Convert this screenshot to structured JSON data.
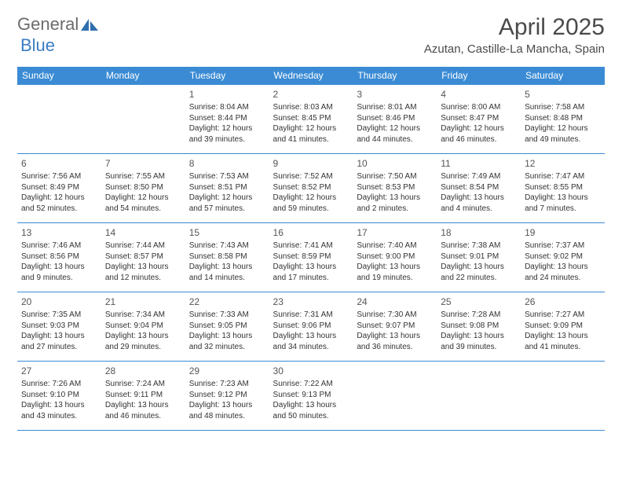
{
  "logo": {
    "general": "General",
    "blue": "Blue"
  },
  "header": {
    "month_title": "April 2025",
    "location": "Azutan, Castille-La Mancha, Spain"
  },
  "colors": {
    "header_bg": "#3b8bd4",
    "header_text": "#ffffff",
    "cell_border": "#3b8bd4",
    "logo_gray": "#6b6b6b",
    "logo_blue": "#3b7dc4",
    "text": "#333333",
    "title_text": "#4a4a4a",
    "page_bg": "#ffffff"
  },
  "typography": {
    "month_title_fontsize": 30,
    "location_fontsize": 15,
    "dayheader_fontsize": 12,
    "daynum_fontsize": 12,
    "cell_fontsize": 10
  },
  "calendar": {
    "day_headers": [
      "Sunday",
      "Monday",
      "Tuesday",
      "Wednesday",
      "Thursday",
      "Friday",
      "Saturday"
    ],
    "weeks": [
      [
        null,
        null,
        {
          "day": "1",
          "sunrise": "8:04 AM",
          "sunset": "8:44 PM",
          "daylight_l1": "Daylight: 12 hours",
          "daylight_l2": "and 39 minutes."
        },
        {
          "day": "2",
          "sunrise": "8:03 AM",
          "sunset": "8:45 PM",
          "daylight_l1": "Daylight: 12 hours",
          "daylight_l2": "and 41 minutes."
        },
        {
          "day": "3",
          "sunrise": "8:01 AM",
          "sunset": "8:46 PM",
          "daylight_l1": "Daylight: 12 hours",
          "daylight_l2": "and 44 minutes."
        },
        {
          "day": "4",
          "sunrise": "8:00 AM",
          "sunset": "8:47 PM",
          "daylight_l1": "Daylight: 12 hours",
          "daylight_l2": "and 46 minutes."
        },
        {
          "day": "5",
          "sunrise": "7:58 AM",
          "sunset": "8:48 PM",
          "daylight_l1": "Daylight: 12 hours",
          "daylight_l2": "and 49 minutes."
        }
      ],
      [
        {
          "day": "6",
          "sunrise": "7:56 AM",
          "sunset": "8:49 PM",
          "daylight_l1": "Daylight: 12 hours",
          "daylight_l2": "and 52 minutes."
        },
        {
          "day": "7",
          "sunrise": "7:55 AM",
          "sunset": "8:50 PM",
          "daylight_l1": "Daylight: 12 hours",
          "daylight_l2": "and 54 minutes."
        },
        {
          "day": "8",
          "sunrise": "7:53 AM",
          "sunset": "8:51 PM",
          "daylight_l1": "Daylight: 12 hours",
          "daylight_l2": "and 57 minutes."
        },
        {
          "day": "9",
          "sunrise": "7:52 AM",
          "sunset": "8:52 PM",
          "daylight_l1": "Daylight: 12 hours",
          "daylight_l2": "and 59 minutes."
        },
        {
          "day": "10",
          "sunrise": "7:50 AM",
          "sunset": "8:53 PM",
          "daylight_l1": "Daylight: 13 hours",
          "daylight_l2": "and 2 minutes."
        },
        {
          "day": "11",
          "sunrise": "7:49 AM",
          "sunset": "8:54 PM",
          "daylight_l1": "Daylight: 13 hours",
          "daylight_l2": "and 4 minutes."
        },
        {
          "day": "12",
          "sunrise": "7:47 AM",
          "sunset": "8:55 PM",
          "daylight_l1": "Daylight: 13 hours",
          "daylight_l2": "and 7 minutes."
        }
      ],
      [
        {
          "day": "13",
          "sunrise": "7:46 AM",
          "sunset": "8:56 PM",
          "daylight_l1": "Daylight: 13 hours",
          "daylight_l2": "and 9 minutes."
        },
        {
          "day": "14",
          "sunrise": "7:44 AM",
          "sunset": "8:57 PM",
          "daylight_l1": "Daylight: 13 hours",
          "daylight_l2": "and 12 minutes."
        },
        {
          "day": "15",
          "sunrise": "7:43 AM",
          "sunset": "8:58 PM",
          "daylight_l1": "Daylight: 13 hours",
          "daylight_l2": "and 14 minutes."
        },
        {
          "day": "16",
          "sunrise": "7:41 AM",
          "sunset": "8:59 PM",
          "daylight_l1": "Daylight: 13 hours",
          "daylight_l2": "and 17 minutes."
        },
        {
          "day": "17",
          "sunrise": "7:40 AM",
          "sunset": "9:00 PM",
          "daylight_l1": "Daylight: 13 hours",
          "daylight_l2": "and 19 minutes."
        },
        {
          "day": "18",
          "sunrise": "7:38 AM",
          "sunset": "9:01 PM",
          "daylight_l1": "Daylight: 13 hours",
          "daylight_l2": "and 22 minutes."
        },
        {
          "day": "19",
          "sunrise": "7:37 AM",
          "sunset": "9:02 PM",
          "daylight_l1": "Daylight: 13 hours",
          "daylight_l2": "and 24 minutes."
        }
      ],
      [
        {
          "day": "20",
          "sunrise": "7:35 AM",
          "sunset": "9:03 PM",
          "daylight_l1": "Daylight: 13 hours",
          "daylight_l2": "and 27 minutes."
        },
        {
          "day": "21",
          "sunrise": "7:34 AM",
          "sunset": "9:04 PM",
          "daylight_l1": "Daylight: 13 hours",
          "daylight_l2": "and 29 minutes."
        },
        {
          "day": "22",
          "sunrise": "7:33 AM",
          "sunset": "9:05 PM",
          "daylight_l1": "Daylight: 13 hours",
          "daylight_l2": "and 32 minutes."
        },
        {
          "day": "23",
          "sunrise": "7:31 AM",
          "sunset": "9:06 PM",
          "daylight_l1": "Daylight: 13 hours",
          "daylight_l2": "and 34 minutes."
        },
        {
          "day": "24",
          "sunrise": "7:30 AM",
          "sunset": "9:07 PM",
          "daylight_l1": "Daylight: 13 hours",
          "daylight_l2": "and 36 minutes."
        },
        {
          "day": "25",
          "sunrise": "7:28 AM",
          "sunset": "9:08 PM",
          "daylight_l1": "Daylight: 13 hours",
          "daylight_l2": "and 39 minutes."
        },
        {
          "day": "26",
          "sunrise": "7:27 AM",
          "sunset": "9:09 PM",
          "daylight_l1": "Daylight: 13 hours",
          "daylight_l2": "and 41 minutes."
        }
      ],
      [
        {
          "day": "27",
          "sunrise": "7:26 AM",
          "sunset": "9:10 PM",
          "daylight_l1": "Daylight: 13 hours",
          "daylight_l2": "and 43 minutes."
        },
        {
          "day": "28",
          "sunrise": "7:24 AM",
          "sunset": "9:11 PM",
          "daylight_l1": "Daylight: 13 hours",
          "daylight_l2": "and 46 minutes."
        },
        {
          "day": "29",
          "sunrise": "7:23 AM",
          "sunset": "9:12 PM",
          "daylight_l1": "Daylight: 13 hours",
          "daylight_l2": "and 48 minutes."
        },
        {
          "day": "30",
          "sunrise": "7:22 AM",
          "sunset": "9:13 PM",
          "daylight_l1": "Daylight: 13 hours",
          "daylight_l2": "and 50 minutes."
        },
        null,
        null,
        null
      ]
    ]
  },
  "labels": {
    "sunrise_prefix": "Sunrise: ",
    "sunset_prefix": "Sunset: "
  }
}
